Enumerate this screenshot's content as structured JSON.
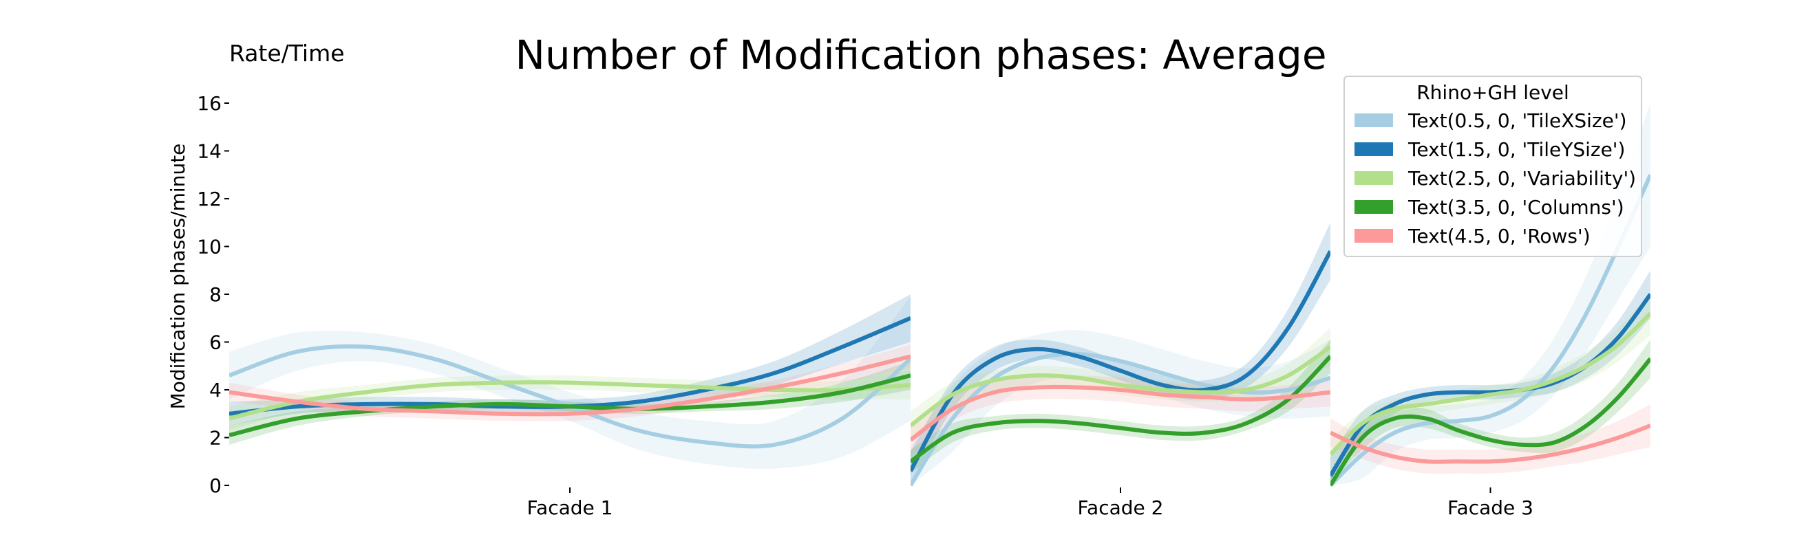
{
  "chart_data": {
    "type": "line",
    "title": "Number of Modification phases: Average",
    "corner_label": "Rate/Time",
    "ylabel": "Modification phases/minute",
    "xlabel": "",
    "ylim": [
      0,
      16
    ],
    "yticks": [
      0,
      2,
      4,
      6,
      8,
      10,
      12,
      14,
      16
    ],
    "grid": false,
    "legend": {
      "title": "Rhino+GH level",
      "placement": "top-right",
      "entries": [
        "Text(0.5, 0, 'TileXSize')",
        "Text(1.5, 0, 'TileYSize')",
        "Text(2.5, 0, 'Variability')",
        "Text(3.5, 0, 'Columns')",
        "Text(4.5, 0, 'Rows')"
      ]
    },
    "panels": [
      {
        "label": "Facade 1",
        "series": [
          {
            "name": "Text(0.5, 0, 'TileXSize')",
            "color": "#a6cee3",
            "x": [
              0,
              0.1,
              0.2,
              0.3,
              0.4,
              0.5,
              0.6,
              0.7,
              0.8,
              0.9,
              1.0
            ],
            "y": [
              4.6,
              5.6,
              5.8,
              5.3,
              4.3,
              3.3,
              2.3,
              1.8,
              1.7,
              2.8,
              5.3
            ],
            "band": [
              1.0,
              0.8,
              0.6,
              0.6,
              0.6,
              0.6,
              0.8,
              0.9,
              1.0,
              1.6,
              2.6
            ]
          },
          {
            "name": "Text(1.5, 0, 'TileYSize')",
            "color": "#1f78b4",
            "x": [
              0,
              0.1,
              0.2,
              0.3,
              0.4,
              0.5,
              0.6,
              0.7,
              0.8,
              0.9,
              1.0
            ],
            "y": [
              3.0,
              3.3,
              3.4,
              3.4,
              3.3,
              3.3,
              3.5,
              4.0,
              4.7,
              5.8,
              7.0
            ],
            "band": [
              0.5,
              0.3,
              0.3,
              0.3,
              0.3,
              0.3,
              0.3,
              0.4,
              0.5,
              0.7,
              1.0
            ]
          },
          {
            "name": "Text(2.5, 0, 'Variability')",
            "color": "#b2df8a",
            "x": [
              0,
              0.1,
              0.2,
              0.3,
              0.4,
              0.5,
              0.6,
              0.7,
              0.8,
              0.9,
              1.0
            ],
            "y": [
              2.8,
              3.5,
              3.9,
              4.2,
              4.3,
              4.3,
              4.2,
              4.1,
              4.0,
              4.0,
              4.2
            ],
            "band": [
              0.5,
              0.4,
              0.3,
              0.3,
              0.3,
              0.3,
              0.3,
              0.3,
              0.3,
              0.4,
              0.6
            ]
          },
          {
            "name": "Text(3.5, 0, 'Columns')",
            "color": "#33a02c",
            "x": [
              0,
              0.1,
              0.2,
              0.3,
              0.4,
              0.5,
              0.6,
              0.7,
              0.8,
              0.9,
              1.0
            ],
            "y": [
              2.1,
              2.8,
              3.1,
              3.3,
              3.4,
              3.3,
              3.2,
              3.3,
              3.5,
              3.9,
              4.6
            ],
            "band": [
              0.4,
              0.3,
              0.2,
              0.2,
              0.2,
              0.2,
              0.2,
              0.2,
              0.3,
              0.4,
              0.6
            ]
          },
          {
            "name": "Text(4.5, 0, 'Rows')",
            "color": "#fb9a99",
            "x": [
              0,
              0.1,
              0.2,
              0.3,
              0.4,
              0.5,
              0.6,
              0.7,
              0.8,
              0.9,
              1.0
            ],
            "y": [
              3.9,
              3.5,
              3.2,
              3.1,
              3.0,
              3.0,
              3.2,
              3.6,
              4.1,
              4.7,
              5.4
            ],
            "band": [
              0.4,
              0.3,
              0.3,
              0.3,
              0.3,
              0.3,
              0.3,
              0.3,
              0.3,
              0.4,
              0.5
            ]
          }
        ]
      },
      {
        "label": "Facade 2",
        "series": [
          {
            "name": "Text(0.5, 0, 'TileXSize')",
            "color": "#a6cee3",
            "x": [
              0,
              0.1,
              0.2,
              0.3,
              0.4,
              0.5,
              0.6,
              0.7,
              0.8,
              0.9,
              1.0
            ],
            "y": [
              0.0,
              2.8,
              4.5,
              5.3,
              5.5,
              5.2,
              4.7,
              4.2,
              3.9,
              4.0,
              4.5
            ],
            "band": [
              1.6,
              1.4,
              1.2,
              1.0,
              1.0,
              1.0,
              1.0,
              1.0,
              1.0,
              1.2,
              1.6
            ]
          },
          {
            "name": "Text(1.5, 0, 'TileYSize')",
            "color": "#1f78b4",
            "x": [
              0,
              0.1,
              0.2,
              0.3,
              0.4,
              0.5,
              0.6,
              0.7,
              0.8,
              0.9,
              1.0
            ],
            "y": [
              0.6,
              3.8,
              5.3,
              5.7,
              5.4,
              4.8,
              4.2,
              4.0,
              4.6,
              6.6,
              9.8
            ],
            "band": [
              0.8,
              0.6,
              0.5,
              0.4,
              0.4,
              0.4,
              0.4,
              0.4,
              0.5,
              0.8,
              1.2
            ]
          },
          {
            "name": "Text(2.5, 0, 'Variability')",
            "color": "#b2df8a",
            "x": [
              0,
              0.1,
              0.2,
              0.3,
              0.4,
              0.5,
              0.6,
              0.7,
              0.8,
              0.9,
              1.0
            ],
            "y": [
              2.5,
              3.8,
              4.4,
              4.6,
              4.5,
              4.2,
              4.0,
              3.9,
              4.0,
              4.6,
              5.8
            ],
            "band": [
              0.6,
              0.5,
              0.4,
              0.4,
              0.4,
              0.4,
              0.4,
              0.4,
              0.4,
              0.5,
              0.8
            ]
          },
          {
            "name": "Text(3.5, 0, 'Columns')",
            "color": "#33a02c",
            "x": [
              0,
              0.1,
              0.2,
              0.3,
              0.4,
              0.5,
              0.6,
              0.7,
              0.8,
              0.9,
              1.0
            ],
            "y": [
              1.0,
              2.2,
              2.6,
              2.7,
              2.6,
              2.4,
              2.2,
              2.2,
              2.6,
              3.6,
              5.4
            ],
            "band": [
              0.5,
              0.4,
              0.3,
              0.3,
              0.3,
              0.3,
              0.3,
              0.3,
              0.3,
              0.5,
              0.7
            ]
          },
          {
            "name": "Text(4.5, 0, 'Rows')",
            "color": "#fb9a99",
            "x": [
              0,
              0.1,
              0.2,
              0.3,
              0.4,
              0.5,
              0.6,
              0.7,
              0.8,
              0.9,
              1.0
            ],
            "y": [
              1.9,
              3.2,
              3.9,
              4.1,
              4.1,
              4.0,
              3.8,
              3.7,
              3.6,
              3.7,
              3.9
            ],
            "band": [
              0.6,
              0.5,
              0.5,
              0.5,
              0.5,
              0.5,
              0.5,
              0.5,
              0.5,
              0.5,
              0.6
            ]
          }
        ]
      },
      {
        "label": "Facade 3",
        "series": [
          {
            "name": "Text(0.5, 0, 'TileXSize')",
            "color": "#a6cee3",
            "x": [
              0,
              0.1,
              0.2,
              0.3,
              0.4,
              0.5,
              0.6,
              0.7,
              0.8,
              0.9,
              1.0
            ],
            "y": [
              0.0,
              1.3,
              2.2,
              2.6,
              2.7,
              2.9,
              3.6,
              5.0,
              7.2,
              10.0,
              13.0
            ],
            "band": [
              1.4,
              1.0,
              0.8,
              0.7,
              0.7,
              0.7,
              0.9,
              1.2,
              1.6,
              2.2,
              3.0
            ]
          },
          {
            "name": "Text(1.5, 0, 'TileYSize')",
            "color": "#1f78b4",
            "x": [
              0,
              0.1,
              0.2,
              0.3,
              0.4,
              0.5,
              0.6,
              0.7,
              0.8,
              0.9,
              1.0
            ],
            "y": [
              0.4,
              2.5,
              3.4,
              3.8,
              3.9,
              3.9,
              4.0,
              4.3,
              5.0,
              6.2,
              8.0
            ],
            "band": [
              0.8,
              0.6,
              0.4,
              0.3,
              0.3,
              0.3,
              0.3,
              0.4,
              0.5,
              0.7,
              1.0
            ]
          },
          {
            "name": "Text(2.5, 0, 'Variability')",
            "color": "#b2df8a",
            "x": [
              0,
              0.1,
              0.2,
              0.3,
              0.4,
              0.5,
              0.6,
              0.7,
              0.8,
              0.9,
              1.0
            ],
            "y": [
              1.3,
              2.6,
              3.2,
              3.4,
              3.6,
              3.8,
              4.0,
              4.4,
              5.0,
              5.9,
              7.2
            ],
            "band": [
              0.6,
              0.5,
              0.4,
              0.4,
              0.4,
              0.4,
              0.4,
              0.5,
              0.6,
              0.7,
              0.9
            ]
          },
          {
            "name": "Text(3.5, 0, 'Columns')",
            "color": "#33a02c",
            "x": [
              0,
              0.1,
              0.2,
              0.3,
              0.4,
              0.5,
              0.6,
              0.7,
              0.8,
              0.9,
              1.0
            ],
            "y": [
              0.0,
              2.0,
              2.8,
              2.8,
              2.3,
              1.9,
              1.7,
              1.8,
              2.5,
              3.7,
              5.3
            ],
            "band": [
              0.6,
              0.5,
              0.4,
              0.4,
              0.3,
              0.3,
              0.3,
              0.4,
              0.5,
              0.6,
              0.8
            ]
          },
          {
            "name": "Text(4.5, 0, 'Rows')",
            "color": "#fb9a99",
            "x": [
              0,
              0.1,
              0.2,
              0.3,
              0.4,
              0.5,
              0.6,
              0.7,
              0.8,
              0.9,
              1.0
            ],
            "y": [
              2.2,
              1.6,
              1.2,
              1.0,
              1.0,
              1.0,
              1.1,
              1.3,
              1.6,
              2.0,
              2.5
            ],
            "band": [
              0.6,
              0.5,
              0.5,
              0.5,
              0.5,
              0.5,
              0.5,
              0.5,
              0.6,
              0.7,
              0.9
            ]
          }
        ]
      }
    ]
  }
}
